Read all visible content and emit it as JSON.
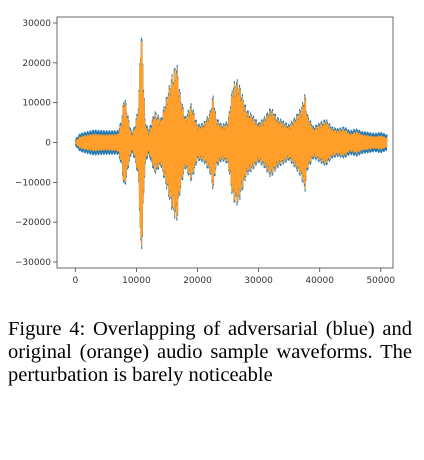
{
  "caption": "Figure 4: Overlapping of adversarial (blue) and original (orange) audio sample waveforms. The perturbation is barely noticeable",
  "chart_data": {
    "type": "line",
    "title": "",
    "xlabel": "",
    "ylabel": "",
    "xlim": [
      -3000,
      52000
    ],
    "ylim": [
      -31500,
      31500
    ],
    "x_ticks": [
      0,
      10000,
      20000,
      30000,
      40000,
      50000
    ],
    "x_tick_labels": [
      "0",
      "10000",
      "20000",
      "30000",
      "40000",
      "50000"
    ],
    "y_ticks": [
      30000,
      20000,
      10000,
      0,
      -10000,
      -20000,
      -30000
    ],
    "y_tick_labels": [
      "30000",
      "20000",
      "10000",
      "0",
      "−10000",
      "−20000",
      "−30000"
    ],
    "grid": false,
    "legend": "none",
    "series": [
      {
        "color": "#1f77b4",
        "x": [
          0,
          800,
          1500,
          3000,
          5000,
          7000,
          7600,
          8000,
          8600,
          9200,
          9800,
          10400,
          10700,
          11000,
          11400,
          12000,
          13000,
          14000,
          15000,
          15800,
          16600,
          17200,
          18000,
          19000,
          20000,
          21000,
          22000,
          22600,
          23000,
          24000,
          25000,
          25800,
          26600,
          27200,
          28000,
          29000,
          30000,
          31000,
          32000,
          33000,
          34000,
          35000,
          36000,
          37000,
          37600,
          38000,
          39000,
          40000,
          41000,
          42000,
          43000,
          44000,
          45000,
          46000,
          47000,
          48000,
          49000,
          50000,
          51000
        ],
        "amplitude": [
          800,
          2300,
          2600,
          3200,
          3000,
          3000,
          6000,
          12500,
          7000,
          2500,
          4500,
          10500,
          30500,
          24000,
          6000,
          3000,
          8000,
          6000,
          12000,
          17000,
          20500,
          12000,
          6500,
          10000,
          4500,
          5000,
          7500,
          12500,
          6500,
          4500,
          5500,
          15000,
          16000,
          13000,
          8500,
          7000,
          5000,
          6500,
          9000,
          6500,
          5500,
          4500,
          6500,
          9000,
          12500,
          7000,
          4000,
          5000,
          6000,
          4000,
          3500,
          4000,
          3000,
          3500,
          2800,
          2600,
          2300,
          2600,
          2000
        ]
      },
      {
        "color": "#ff9f2a",
        "x": [
          0,
          800,
          1500,
          3000,
          5000,
          7000,
          7600,
          8000,
          8600,
          9200,
          9800,
          10400,
          10700,
          11000,
          11400,
          12000,
          13000,
          14000,
          15000,
          15800,
          16600,
          17200,
          18000,
          19000,
          20000,
          21000,
          22000,
          22600,
          23000,
          24000,
          25000,
          25800,
          26600,
          27200,
          28000,
          29000,
          30000,
          31000,
          32000,
          33000,
          34000,
          35000,
          36000,
          37000,
          37600,
          38000,
          39000,
          40000,
          41000,
          42000,
          43000,
          44000,
          45000,
          46000,
          47000,
          48000,
          49000,
          50000,
          51000
        ],
        "amplitude": [
          300,
          1500,
          1800,
          2200,
          2000,
          2200,
          5500,
          12000,
          6500,
          1800,
          4000,
          10000,
          30000,
          23500,
          5500,
          2200,
          7500,
          5500,
          11500,
          16500,
          20000,
          11500,
          6000,
          9500,
          4000,
          4500,
          7000,
          12000,
          6000,
          4000,
          5000,
          14500,
          15500,
          12500,
          8000,
          6500,
          4500,
          6000,
          8500,
          6000,
          5000,
          4000,
          6000,
          8500,
          12000,
          6500,
          3500,
          4500,
          5500,
          3500,
          3000,
          3500,
          2200,
          2800,
          2000,
          1800,
          1500,
          1800,
          1200
        ]
      }
    ]
  }
}
